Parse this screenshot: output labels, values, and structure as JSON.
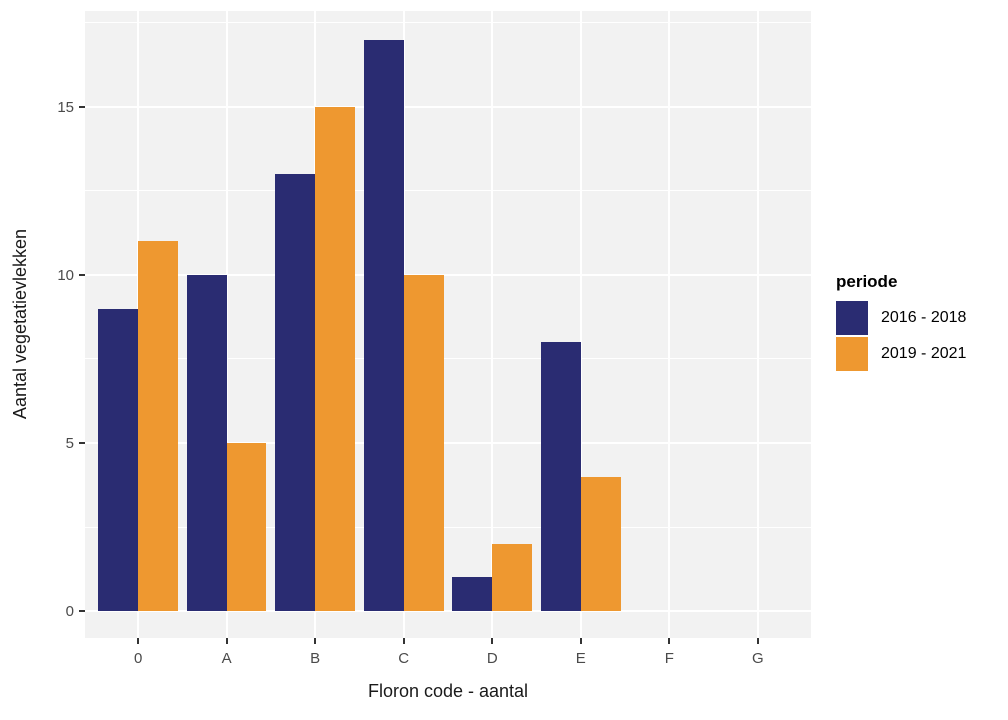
{
  "chart_data": {
    "type": "bar",
    "title": "",
    "xlabel": "Floron code - aantal",
    "ylabel": "Aantal vegetatievlekken",
    "categories": [
      "0",
      "A",
      "B",
      "C",
      "D",
      "E",
      "F",
      "G"
    ],
    "series": [
      {
        "name": "2016 - 2018",
        "color": "#2A2C72",
        "values": [
          9,
          10,
          13,
          17,
          1,
          8,
          0,
          0
        ]
      },
      {
        "name": "2019 - 2021",
        "color": "#EE9830",
        "values": [
          11,
          5,
          15,
          10,
          2,
          4,
          0,
          0
        ]
      }
    ],
    "legend_title": "periode",
    "legend_position": "right",
    "y_ticks": [
      0,
      5,
      10,
      15
    ],
    "y_minor_ticks": [
      2.5,
      7.5,
      12.5,
      17.5
    ],
    "ylim": [
      -0.8,
      17.85
    ],
    "grid": "on",
    "panel_bg": "#F2F2F2",
    "grid_color": "#FFFFFF"
  }
}
